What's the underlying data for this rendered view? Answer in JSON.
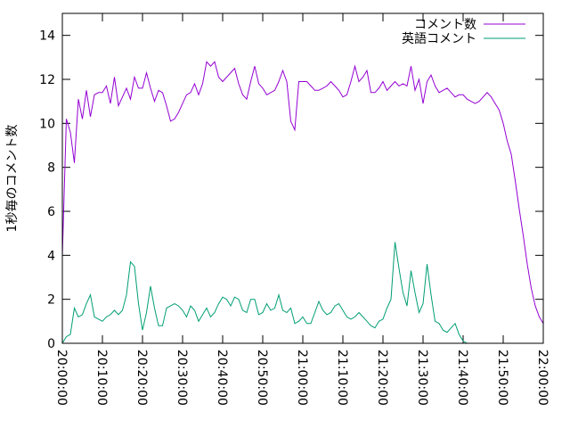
{
  "chart_data": {
    "type": "line",
    "title": "",
    "xlabel": "",
    "ylabel": "1秒毎のコメント数",
    "xlim": [
      "20:00:00",
      "22:00:00"
    ],
    "ylim": [
      0,
      15
    ],
    "x_ticks": [
      "20:00:00",
      "20:10:00",
      "20:20:00",
      "20:30:00",
      "20:40:00",
      "20:50:00",
      "21:00:00",
      "21:10:00",
      "21:20:00",
      "21:30:00",
      "21:40:00",
      "21:50:00",
      "22:00:00"
    ],
    "y_ticks": [
      0,
      2,
      4,
      6,
      8,
      10,
      12,
      14
    ],
    "grid": false,
    "legend": "top-right",
    "x": [
      "20:00:00",
      "20:01:00",
      "20:02:00",
      "20:03:00",
      "20:04:00",
      "20:05:00",
      "20:06:00",
      "20:07:00",
      "20:08:00",
      "20:09:00",
      "20:10:00",
      "20:11:00",
      "20:12:00",
      "20:13:00",
      "20:14:00",
      "20:15:00",
      "20:16:00",
      "20:17:00",
      "20:18:00",
      "20:19:00",
      "20:20:00",
      "20:21:00",
      "20:22:00",
      "20:23:00",
      "20:24:00",
      "20:25:00",
      "20:26:00",
      "20:27:00",
      "20:28:00",
      "20:29:00",
      "20:30:00",
      "20:31:00",
      "20:32:00",
      "20:33:00",
      "20:34:00",
      "20:35:00",
      "20:36:00",
      "20:37:00",
      "20:38:00",
      "20:39:00",
      "20:40:00",
      "20:41:00",
      "20:42:00",
      "20:43:00",
      "20:44:00",
      "20:45:00",
      "20:46:00",
      "20:47:00",
      "20:48:00",
      "20:49:00",
      "20:50:00",
      "20:51:00",
      "20:52:00",
      "20:53:00",
      "20:54:00",
      "20:55:00",
      "20:56:00",
      "20:57:00",
      "20:58:00",
      "20:59:00",
      "21:00:00",
      "21:01:00",
      "21:02:00",
      "21:03:00",
      "21:04:00",
      "21:05:00",
      "21:06:00",
      "21:07:00",
      "21:08:00",
      "21:09:00",
      "21:10:00",
      "21:11:00",
      "21:12:00",
      "21:13:00",
      "21:14:00",
      "21:15:00",
      "21:16:00",
      "21:17:00",
      "21:18:00",
      "21:19:00",
      "21:20:00",
      "21:21:00",
      "21:22:00",
      "21:23:00",
      "21:24:00",
      "21:25:00",
      "21:26:00",
      "21:27:00",
      "21:28:00",
      "21:29:00",
      "21:30:00",
      "21:31:00",
      "21:32:00",
      "21:33:00",
      "21:34:00",
      "21:35:00",
      "21:36:00",
      "21:37:00",
      "21:38:00",
      "21:39:00",
      "21:40:00",
      "21:41:00",
      "21:42:00",
      "21:43:00",
      "21:44:00",
      "21:45:00",
      "21:46:00",
      "21:47:00",
      "21:48:00",
      "21:49:00",
      "21:50:00",
      "21:51:00",
      "21:52:00",
      "21:53:00",
      "21:54:00",
      "21:55:00",
      "21:56:00",
      "21:57:00",
      "21:58:00",
      "21:59:00",
      "22:00:00"
    ],
    "series": [
      {
        "name": "コメント数",
        "color": "#9400d3",
        "values": [
          4.0,
          10.2,
          9.6,
          8.2,
          11.1,
          10.2,
          11.5,
          10.3,
          11.3,
          11.4,
          11.4,
          11.7,
          10.9,
          12.1,
          10.8,
          11.2,
          11.6,
          11.1,
          12.1,
          11.6,
          11.6,
          12.3,
          11.6,
          11.0,
          11.5,
          11.4,
          10.8,
          10.1,
          10.2,
          10.5,
          10.9,
          11.3,
          11.4,
          11.8,
          11.3,
          11.8,
          12.8,
          12.6,
          12.8,
          12.1,
          11.9,
          12.1,
          12.3,
          12.5,
          11.8,
          11.3,
          11.1,
          11.9,
          12.6,
          11.8,
          11.6,
          11.3,
          11.4,
          11.5,
          11.9,
          12.4,
          11.9,
          10.1,
          9.7,
          11.9,
          11.9,
          11.9,
          11.7,
          11.5,
          11.5,
          11.6,
          11.7,
          11.9,
          11.7,
          11.5,
          11.2,
          11.3,
          11.9,
          12.6,
          11.9,
          12.1,
          12.4,
          11.4,
          11.4,
          11.6,
          11.9,
          11.5,
          11.7,
          11.9,
          11.7,
          11.8,
          11.7,
          12.6,
          11.5,
          12.0,
          10.9,
          11.9,
          12.2,
          11.7,
          11.4,
          11.5,
          11.6,
          11.4,
          11.2,
          11.3,
          11.3,
          11.1,
          11.0,
          10.9,
          11.0,
          11.2,
          11.4,
          11.2,
          10.9,
          10.6,
          10.0,
          9.2,
          8.6,
          7.4,
          6.1,
          4.9,
          3.6,
          2.5,
          1.7,
          1.2,
          0.9
        ]
      },
      {
        "name": "英語コメント",
        "color": "#009e73",
        "values": [
          0.0,
          0.3,
          0.4,
          1.6,
          1.2,
          1.3,
          1.8,
          2.2,
          1.2,
          1.1,
          1.0,
          1.2,
          1.3,
          1.5,
          1.3,
          1.5,
          2.2,
          3.7,
          3.5,
          1.8,
          0.6,
          1.4,
          2.6,
          1.6,
          0.8,
          0.8,
          1.6,
          1.7,
          1.8,
          1.7,
          1.5,
          1.2,
          1.7,
          1.5,
          1.0,
          1.3,
          1.6,
          1.2,
          1.4,
          1.8,
          2.1,
          2.0,
          1.7,
          2.1,
          2.0,
          1.5,
          1.4,
          2.0,
          2.0,
          1.3,
          1.4,
          1.8,
          1.5,
          1.6,
          2.2,
          1.5,
          1.4,
          1.6,
          0.9,
          1.0,
          1.2,
          0.9,
          0.9,
          1.4,
          1.9,
          1.5,
          1.3,
          1.4,
          1.7,
          1.8,
          1.5,
          1.2,
          1.1,
          1.2,
          1.4,
          1.2,
          1.0,
          0.8,
          0.7,
          1.0,
          1.1,
          1.6,
          2.0,
          4.6,
          3.4,
          2.3,
          1.7,
          3.3,
          2.3,
          1.4,
          1.8,
          3.6,
          2.2,
          1.0,
          0.9,
          0.6,
          0.5,
          0.7,
          0.9,
          0.4,
          0.1,
          0.0,
          0.0,
          0.0,
          0.0,
          0.0,
          0.0,
          0.0,
          0.0,
          0.0,
          0.0,
          0.0,
          0.0,
          0.0,
          0.0,
          0.0,
          0.0,
          0.0,
          0.0,
          0.0,
          0.0
        ]
      }
    ]
  }
}
